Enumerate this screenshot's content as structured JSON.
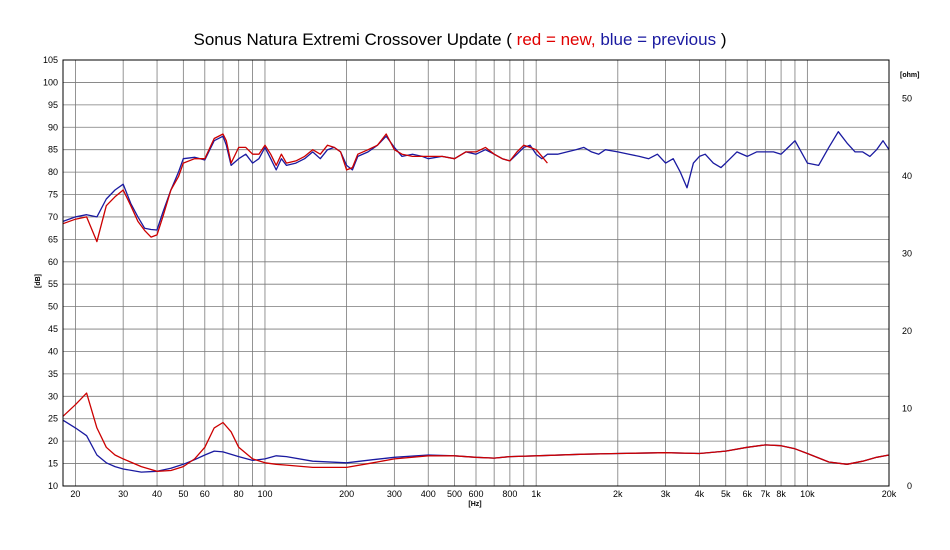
{
  "title": {
    "main": "Sonus Natura Extremi Crossover Update",
    "open": " ( ",
    "red_part": "red = new,",
    "space": " ",
    "blue_part": "blue = previous",
    "close": " )"
  },
  "colors": {
    "new": "#cc0000",
    "previous": "#1a1aa0",
    "grid": "#7a7a7a"
  },
  "chart_data": {
    "type": "line",
    "xlabel": "[Hz]",
    "ylabel": "[dB]",
    "y2label": "[ohm]",
    "x_scale": "log",
    "xlim": [
      18,
      20000
    ],
    "ylim": [
      10,
      105
    ],
    "y2lim": [
      0,
      55
    ],
    "grid": true,
    "x_ticks": [
      {
        "v": 20,
        "label": "20"
      },
      {
        "v": 30,
        "label": "30"
      },
      {
        "v": 40,
        "label": "40"
      },
      {
        "v": 50,
        "label": "50"
      },
      {
        "v": 60,
        "label": "60"
      },
      {
        "v": 80,
        "label": "80"
      },
      {
        "v": 100,
        "label": "100"
      },
      {
        "v": 200,
        "label": "200"
      },
      {
        "v": 300,
        "label": "300"
      },
      {
        "v": 400,
        "label": "400"
      },
      {
        "v": 500,
        "label": "500"
      },
      {
        "v": 600,
        "label": "600"
      },
      {
        "v": 800,
        "label": "800"
      },
      {
        "v": 1000,
        "label": "1k"
      },
      {
        "v": 2000,
        "label": "2k"
      },
      {
        "v": 3000,
        "label": "3k"
      },
      {
        "v": 4000,
        "label": "4k"
      },
      {
        "v": 5000,
        "label": "5k"
      },
      {
        "v": 6000,
        "label": "6k"
      },
      {
        "v": 7000,
        "label": "7k"
      },
      {
        "v": 8000,
        "label": "8k"
      },
      {
        "v": 10000,
        "label": "10k"
      },
      {
        "v": 20000,
        "label": "20k"
      }
    ],
    "x_minor": [
      70,
      90,
      700,
      900,
      9000
    ],
    "y_ticks": [
      "10",
      "15",
      "20",
      "25",
      "30",
      "35",
      "40",
      "45",
      "50",
      "55",
      "60",
      "65",
      "70",
      "75",
      "80",
      "85",
      "90",
      "95",
      "100",
      "105"
    ],
    "y2_ticks": [
      "0",
      "10",
      "20",
      "30",
      "40",
      "50"
    ],
    "series": [
      {
        "name": "previous",
        "axis": "y",
        "color": "#1a1aa0",
        "x": [
          18,
          20,
          22,
          24,
          26,
          28,
          30,
          32,
          34,
          36,
          38,
          40,
          42,
          45,
          48,
          50,
          55,
          60,
          65,
          70,
          72,
          75,
          80,
          85,
          90,
          95,
          100,
          105,
          110,
          115,
          120,
          130,
          140,
          150,
          160,
          170,
          180,
          190,
          200,
          210,
          220,
          240,
          260,
          280,
          300,
          320,
          350,
          380,
          400,
          450,
          500,
          550,
          600,
          650,
          700,
          750,
          800,
          850,
          900,
          950,
          1000,
          1050,
          1100,
          1200,
          1300,
          1400,
          1500,
          1600,
          1700,
          1800,
          2000,
          2200,
          2400,
          2600,
          2800,
          3000,
          3200,
          3400,
          3600,
          3800,
          4000,
          4200,
          4500,
          4800,
          5000,
          5500,
          6000,
          6500,
          7000,
          7500,
          8000,
          8500,
          9000,
          10000,
          11000,
          12000,
          13000,
          14000,
          15000,
          16000,
          17000,
          18000,
          19000,
          20000
        ],
        "values": [
          69.0,
          70.0,
          70.5,
          70.0,
          74.0,
          76.0,
          77.3,
          73.0,
          70.0,
          67.5,
          67.2,
          67.1,
          71.0,
          76.0,
          80.0,
          83.0,
          83.3,
          82.7,
          87.0,
          88.0,
          86.0,
          81.5,
          83.0,
          84.0,
          82.0,
          83.0,
          85.5,
          83.0,
          80.5,
          83.0,
          81.5,
          82.0,
          83.0,
          84.5,
          83.0,
          85.0,
          85.5,
          84.5,
          81.5,
          80.5,
          83.5,
          84.5,
          86.0,
          88.0,
          85.5,
          83.5,
          84.0,
          83.5,
          83.0,
          83.5,
          83.0,
          84.5,
          84.0,
          85.0,
          84.0,
          83.0,
          82.5,
          84.0,
          85.5,
          86.0,
          84.0,
          83.0,
          84.0,
          84.0,
          84.5,
          85.0,
          85.5,
          84.5,
          84.0,
          85.0,
          84.5,
          84.0,
          83.5,
          83.0,
          84.0,
          82.0,
          83.0,
          80.0,
          76.5,
          82.0,
          83.5,
          84.0,
          82.0,
          81.0,
          82.0,
          84.5,
          83.5,
          84.5,
          84.5,
          84.5,
          84.0,
          85.5,
          87.0,
          82.0,
          81.5,
          85.5,
          89.0,
          86.5,
          84.5,
          84.5,
          83.5,
          85.0,
          87.0,
          85.0
        ]
      },
      {
        "name": "new",
        "axis": "y",
        "color": "#cc0000",
        "x": [
          18,
          20,
          22,
          24,
          26,
          28,
          30,
          32,
          34,
          36,
          38,
          40,
          42,
          45,
          48,
          50,
          55,
          60,
          65,
          70,
          72,
          75,
          80,
          85,
          90,
          95,
          100,
          105,
          110,
          115,
          120,
          130,
          140,
          150,
          160,
          170,
          180,
          190,
          200,
          210,
          220,
          240,
          260,
          280,
          300,
          320,
          350,
          380,
          400,
          450,
          500,
          550,
          600,
          650,
          700,
          750,
          800,
          850,
          900,
          950,
          1000,
          1050,
          1100
        ],
        "values": [
          68.5,
          69.5,
          70.0,
          64.5,
          72.5,
          74.5,
          76.0,
          72.5,
          69.0,
          67.0,
          65.5,
          66.0,
          70.0,
          76.0,
          79.0,
          82.0,
          83.0,
          83.0,
          87.5,
          88.5,
          87.0,
          82.0,
          85.5,
          85.5,
          84.0,
          84.0,
          86.0,
          84.0,
          81.5,
          84.0,
          82.0,
          82.5,
          83.5,
          85.0,
          84.0,
          86.0,
          85.5,
          84.5,
          80.5,
          81.0,
          84.0,
          85.0,
          86.0,
          88.5,
          85.0,
          84.0,
          83.5,
          83.5,
          83.5,
          83.5,
          83.0,
          84.5,
          84.5,
          85.5,
          84.0,
          83.0,
          82.5,
          84.5,
          86.0,
          85.5,
          85.0,
          83.5,
          82.0
        ]
      },
      {
        "name": "previous",
        "axis": "y2",
        "color": "#1a1aa0",
        "x": [
          18,
          20,
          22,
          24,
          26,
          28,
          30,
          35,
          40,
          45,
          50,
          55,
          60,
          65,
          70,
          80,
          90,
          100,
          110,
          120,
          150,
          200,
          250,
          300,
          400,
          500,
          600,
          700,
          800,
          1000,
          1500,
          2000,
          3000,
          4000,
          5000,
          6000,
          7000,
          8000,
          9000,
          10000,
          12000,
          14000,
          16000,
          18000,
          20000
        ],
        "values": [
          8.5,
          7.5,
          6.5,
          4.0,
          3.0,
          2.5,
          2.2,
          1.8,
          1.9,
          2.3,
          2.8,
          3.4,
          4.0,
          4.5,
          4.4,
          3.8,
          3.3,
          3.5,
          3.9,
          3.8,
          3.2,
          3.0,
          3.4,
          3.7,
          4.0,
          3.9,
          3.7,
          3.6,
          3.8,
          3.9,
          4.1,
          4.2,
          4.3,
          4.2,
          4.5,
          5.0,
          5.3,
          5.2,
          4.8,
          4.2,
          3.1,
          2.8,
          3.2,
          3.7,
          4.0
        ]
      },
      {
        "name": "new",
        "axis": "y2",
        "color": "#cc0000",
        "x": [
          18,
          20,
          22,
          24,
          26,
          28,
          30,
          35,
          40,
          45,
          50,
          55,
          60,
          65,
          70,
          75,
          80,
          90,
          100,
          110,
          120,
          150,
          200,
          250,
          300,
          400,
          500,
          600,
          700,
          800,
          1000,
          1500,
          2000,
          3000,
          4000,
          5000,
          6000,
          7000,
          8000,
          9000,
          10000,
          12000,
          14000,
          16000,
          18000,
          20000
        ],
        "values": [
          9.0,
          10.5,
          12.0,
          7.5,
          5.0,
          4.0,
          3.5,
          2.5,
          1.9,
          2.0,
          2.5,
          3.5,
          5.0,
          7.5,
          8.2,
          7.0,
          5.0,
          3.5,
          3.0,
          2.8,
          2.7,
          2.4,
          2.4,
          3.0,
          3.5,
          3.9,
          3.9,
          3.7,
          3.6,
          3.8,
          3.9,
          4.1,
          4.2,
          4.3,
          4.2,
          4.5,
          5.0,
          5.3,
          5.2,
          4.8,
          4.2,
          3.1,
          2.8,
          3.2,
          3.7,
          4.0
        ]
      }
    ]
  }
}
